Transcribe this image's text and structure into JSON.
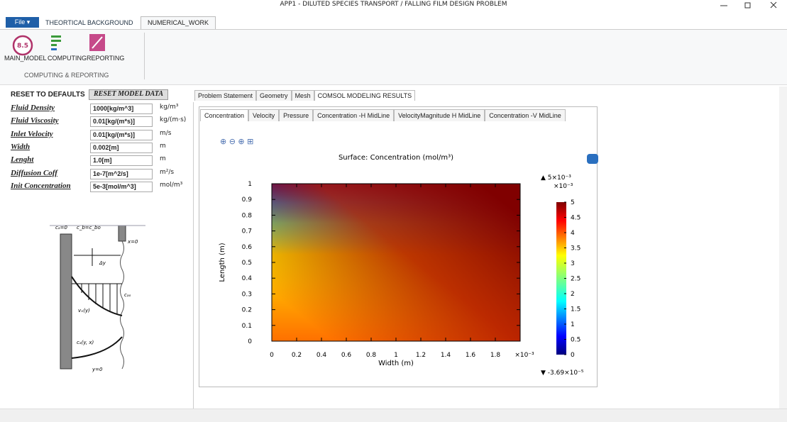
{
  "window": {
    "title": "APP1 - DILUTED SPECIES TRANSPORT / FALLING FILM DESIGN PROBLEM"
  },
  "ribbon": {
    "tabs": [
      "File ▾",
      "THEORTICAL BACKGROUND",
      "NUMERICAL_WORK"
    ],
    "icon_text": "8.5",
    "buttons": [
      "MAIN_MODEL",
      "COMPUTING",
      "REPORTING"
    ],
    "group": "COMPUTING & REPORTING"
  },
  "form": {
    "reset_label": "RESET TO DEFAULTS",
    "reset_button": "RESET MODEL DATA",
    "rows": [
      [
        "Fluid Density",
        "1000[kg/m^3]",
        "kg/m³"
      ],
      [
        "Fluid Viscosity",
        "0.01[kg/(m*s)]",
        "kg/(m·s)"
      ],
      [
        "Inlet Velocity",
        "0.01[kg/(m*s)]",
        "m/s"
      ],
      [
        "Width",
        "0.002[m]",
        "m"
      ],
      [
        "Lenght",
        "1.0[m]",
        "m"
      ],
      [
        "Diffusion Coff",
        "1e-7[m^2/s]",
        "m²/s"
      ],
      [
        "Init Concentration",
        "5e-3[mol/m^3]",
        "mol/m³"
      ]
    ]
  },
  "diagram": {
    "labels": [
      "cₐ=0",
      "c_b=c_bo",
      "x=0",
      "Δy",
      "cₐₒ",
      "vₓ(y)",
      "cₐ(y, x)",
      "y=0"
    ]
  },
  "tabs": [
    "Problem Statement",
    "Geometry",
    "Mesh",
    "COMSOL MODELING RESULTS"
  ],
  "subtabs": [
    "Concentration",
    "Velocity",
    "Pressure",
    "Concentration -H MidLine",
    "VelocityMagnitude H MidLine",
    "Concentration -V MidLine"
  ],
  "plot": {
    "title": "Surface: Concentration (mol/m³)",
    "xlabel": "Width (m)",
    "ylabel": "Length (m)",
    "xlim": [
      0,
      2
    ],
    "xticks": [
      0,
      0.2,
      0.4,
      0.6,
      0.8,
      1,
      1.2,
      1.4,
      1.6,
      1.8
    ],
    "x_multiplier": "×10⁻³",
    "ylim": [
      0,
      1
    ],
    "yticks": [
      0,
      0.1,
      0.2,
      0.3,
      0.4,
      0.5,
      0.6,
      0.7,
      0.8,
      0.9,
      1
    ]
  },
  "colorbar": {
    "max_label": "▲ 5×10⁻³",
    "multiplier": "×10⁻³",
    "lim": [
      0,
      5
    ],
    "ticks": [
      0,
      0.5,
      1,
      1.5,
      2,
      2.5,
      3,
      3.5,
      4,
      4.5,
      5
    ],
    "min_label": "▼ -3.69×10⁻⁵"
  }
}
